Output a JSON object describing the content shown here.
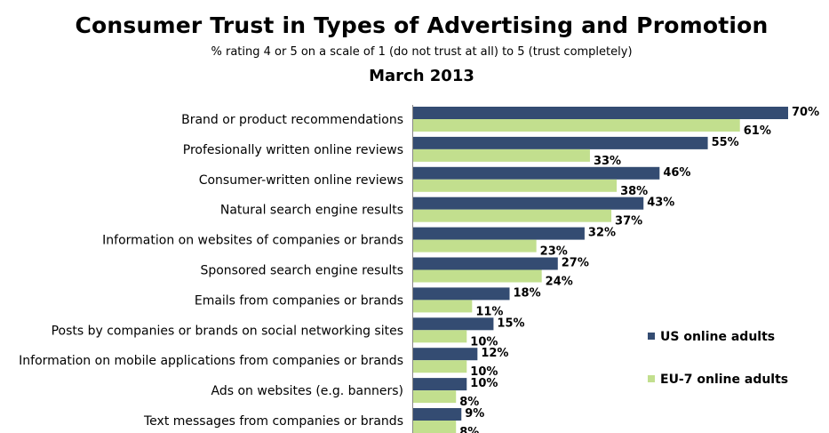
{
  "chart_data": {
    "type": "bar",
    "orientation": "horizontal",
    "title": "Consumer Trust in Types of Advertising and Promotion",
    "subtitle": "% rating 4 or 5 on a scale of 1 (do not trust at all) to 5 (trust completely)",
    "date_label": "March 2013",
    "categories": [
      "Brand or product recommendations",
      "Profesionally written online reviews",
      "Consumer-written online reviews",
      "Natural search engine results",
      "Information on websites of companies or brands",
      "Sponsored search engine results",
      "Emails from companies or brands",
      "Posts by companies or brands on social networking sites",
      "Information on mobile applications from companies or brands",
      "Ads on websites (e.g. banners)",
      "Text messages from companies or brands"
    ],
    "series": [
      {
        "name": "US online adults",
        "color": "#344c72",
        "values": [
          70,
          55,
          46,
          43,
          32,
          27,
          18,
          15,
          12,
          10,
          9
        ]
      },
      {
        "name": "EU-7 online adults",
        "color": "#c2df8e",
        "values": [
          61,
          33,
          38,
          37,
          23,
          24,
          11,
          10,
          10,
          8,
          8
        ]
      }
    ],
    "value_suffix": "%",
    "xlim": [
      0,
      70
    ],
    "grid": false,
    "legend_position": "right"
  }
}
